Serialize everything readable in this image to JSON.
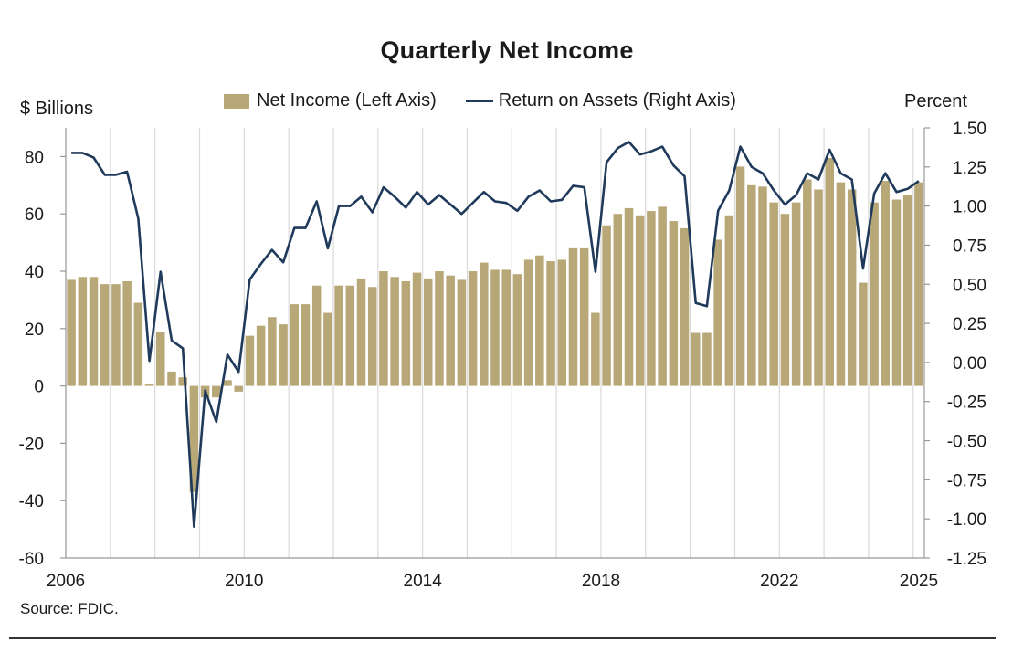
{
  "title": "Quarterly Net Income",
  "left_unit": "$ Billions",
  "right_unit": "Percent",
  "source": "Source: FDIC.",
  "colors": {
    "bar": "#b8a878",
    "line": "#1f3a5a",
    "grid": "#d9d9d9",
    "axis": "#999999"
  },
  "chart_data": {
    "type": "bar",
    "title": "Quarterly Net Income",
    "xlabel": "",
    "ylabel": "$ Billions",
    "y2label": "Percent",
    "ylim": [
      -60,
      90
    ],
    "y2lim": [
      -1.25,
      1.5
    ],
    "yticks": [
      80,
      60,
      40,
      20,
      0,
      -20,
      -40,
      -60
    ],
    "y2ticks": [
      "1.50",
      "1.25",
      "1.00",
      "0.75",
      "0.50",
      "0.25",
      "0.00",
      "-0.25",
      "-0.50",
      "-0.75",
      "-1.00",
      "-1.25"
    ],
    "xticks": [
      "2006",
      "2010",
      "2014",
      "2018",
      "2022",
      "2025"
    ],
    "x_start": "2006 Q1",
    "x_end": "2025 Q1",
    "legend": "top",
    "grid": "vertical",
    "series": [
      {
        "name": "Net Income (Left Axis)",
        "type": "bar",
        "axis": "left",
        "values": [
          37,
          38,
          38,
          35.5,
          35.5,
          36.5,
          29,
          0.5,
          19,
          5,
          3,
          -37,
          -4,
          -4,
          2,
          -2,
          17.5,
          21,
          24,
          21.5,
          28.5,
          28.5,
          35,
          25.5,
          35,
          35,
          37.5,
          34.5,
          40,
          38,
          36.5,
          39.5,
          37.5,
          40,
          38.5,
          37,
          40,
          43,
          40.5,
          40.5,
          39,
          44,
          45.5,
          43.5,
          44,
          48,
          48,
          25.5,
          56,
          60,
          62,
          59.5,
          61,
          62.5,
          57.5,
          55,
          18.5,
          18.5,
          51,
          59.5,
          76.5,
          70,
          69.5,
          64,
          60,
          64,
          72,
          68.5,
          79.5,
          71,
          68.5,
          36,
          64,
          71.5,
          65,
          66.5,
          71
        ]
      },
      {
        "name": "Return on Assets (Right Axis)",
        "type": "line",
        "axis": "right",
        "values": [
          1.34,
          1.34,
          1.31,
          1.2,
          1.2,
          1.22,
          0.92,
          0.01,
          0.58,
          0.14,
          0.09,
          -1.05,
          -0.18,
          -0.38,
          0.05,
          -0.06,
          0.53,
          0.63,
          0.72,
          0.64,
          0.86,
          0.86,
          1.03,
          0.73,
          1.0,
          1.0,
          1.06,
          0.96,
          1.12,
          1.06,
          0.99,
          1.09,
          1.01,
          1.07,
          1.01,
          0.95,
          1.02,
          1.09,
          1.03,
          1.02,
          0.97,
          1.06,
          1.1,
          1.03,
          1.04,
          1.13,
          1.12,
          0.58,
          1.28,
          1.37,
          1.41,
          1.33,
          1.35,
          1.38,
          1.26,
          1.19,
          0.38,
          0.36,
          0.97,
          1.1,
          1.38,
          1.25,
          1.21,
          1.1,
          1.01,
          1.07,
          1.21,
          1.17,
          1.36,
          1.21,
          1.17,
          0.6,
          1.08,
          1.21,
          1.09,
          1.11,
          1.16
        ]
      }
    ]
  }
}
